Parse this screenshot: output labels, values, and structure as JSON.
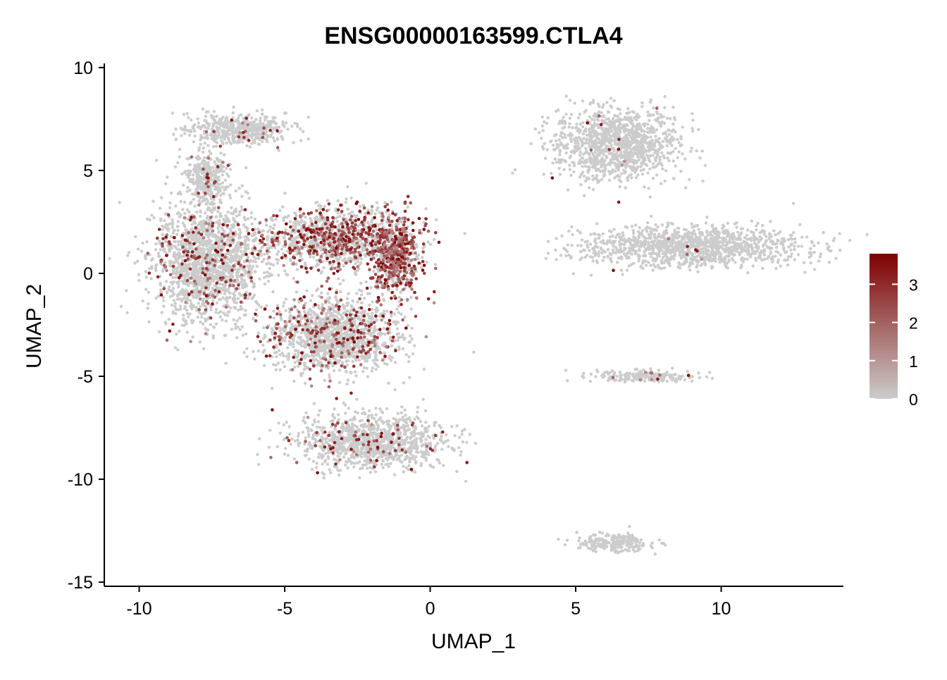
{
  "chart_data": {
    "type": "scatter",
    "title": "ENSG00000163599.CTLA4",
    "xlabel": "UMAP_1",
    "ylabel": "UMAP_2",
    "xlim": [
      -11.2,
      14.2
    ],
    "ylim": [
      -15.2,
      10.2
    ],
    "xticks": [
      -10,
      -5,
      0,
      5,
      10
    ],
    "yticks": [
      -15,
      -10,
      -5,
      0,
      5,
      10
    ],
    "xtick_labels": [
      "-10",
      "-5",
      "0",
      "5",
      "10"
    ],
    "ytick_labels": [
      "-15",
      "-10",
      "-5",
      "0",
      "5",
      "10"
    ],
    "grid": false,
    "point_color_low": "#CCCCCC",
    "point_color_high": "#7F0000",
    "color_scale": {
      "min": 0,
      "max": 3.8,
      "ticks": [
        0,
        1,
        2,
        3
      ],
      "tick_labels": [
        "0",
        "1",
        "2",
        "3"
      ],
      "legend_position": "right"
    },
    "clusters": [
      {
        "name": "upper-left arm",
        "center": [
          -6.7,
          7.0
        ],
        "spread": [
          1.2,
          0.55
        ],
        "expr_frac": 0.03
      },
      {
        "name": "left neck",
        "center": [
          -7.7,
          4.6
        ],
        "spread": [
          0.5,
          0.9
        ],
        "expr_frac": 0.05
      },
      {
        "name": "left main body",
        "center": [
          -7.6,
          0.5
        ],
        "spread": [
          1.3,
          2.0
        ],
        "expr_frac": 0.08
      },
      {
        "name": "center main body",
        "center": [
          -3.3,
          1.7
        ],
        "spread": [
          1.8,
          1.0
        ],
        "expr_frac": 0.3
      },
      {
        "name": "center-right high expression",
        "center": [
          -1.2,
          0.8
        ],
        "spread": [
          0.6,
          1.4
        ],
        "expr_frac": 0.55
      },
      {
        "name": "lower middle",
        "center": [
          -3.3,
          -3.0
        ],
        "spread": [
          1.6,
          1.3
        ],
        "expr_frac": 0.15
      },
      {
        "name": "bottom tail",
        "center": [
          -2.0,
          -8.2
        ],
        "spread": [
          1.8,
          0.9
        ],
        "expr_frac": 0.07
      },
      {
        "name": "upper-right cluster",
        "center": [
          6.4,
          6.3
        ],
        "spread": [
          1.5,
          1.2
        ],
        "expr_frac": 0.01
      },
      {
        "name": "right elongated cluster",
        "center": [
          9.0,
          1.3
        ],
        "spread": [
          2.6,
          0.7
        ],
        "expr_frac": 0.01
      },
      {
        "name": "small island",
        "center": [
          7.5,
          -5.0
        ],
        "spread": [
          1.2,
          0.2
        ],
        "expr_frac": 0.03
      },
      {
        "name": "bottom arc",
        "center": [
          6.3,
          -13.1
        ],
        "spread": [
          0.9,
          0.3
        ],
        "expr_frac": 0.0
      }
    ]
  }
}
